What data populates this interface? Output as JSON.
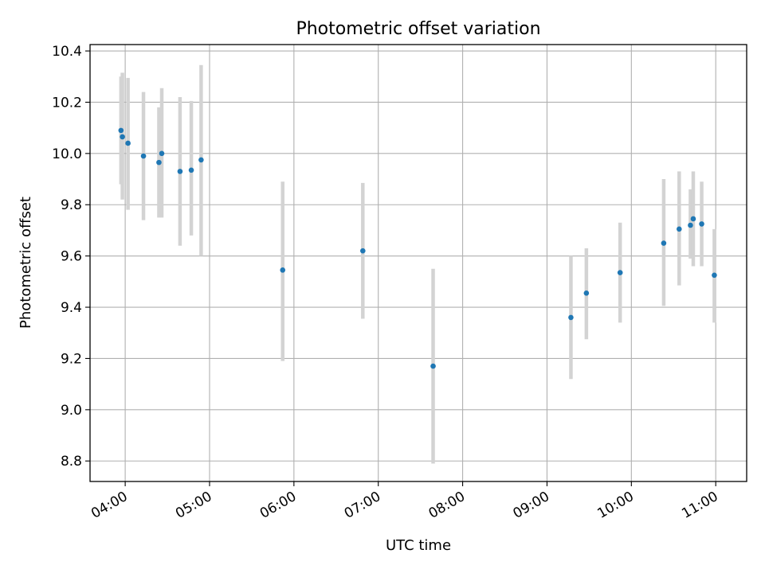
{
  "chart_data": {
    "type": "scatter",
    "title": "Photometric offset variation",
    "xlabel": "UTC time",
    "ylabel": "Photometric offset",
    "xlim": [
      "03:35",
      "11:22"
    ],
    "ylim": [
      8.72,
      10.425
    ],
    "x_ticks": [
      "04:00",
      "05:00",
      "06:00",
      "07:00",
      "08:00",
      "09:00",
      "10:00",
      "11:00"
    ],
    "y_ticks": [
      8.8,
      9.0,
      9.2,
      9.4,
      9.6,
      9.8,
      10.0,
      10.2,
      10.4
    ],
    "y_tick_labels": [
      "8.8",
      "9.0",
      "9.2",
      "9.4",
      "9.6",
      "9.8",
      "10.0",
      "10.2",
      "10.4"
    ],
    "grid": true,
    "marker_color": "#1f77b4",
    "errorbar_color": "#d3d3d3",
    "points": [
      {
        "x": "03:57",
        "y": 10.09,
        "ylow": 9.88,
        "yhigh": 10.3
      },
      {
        "x": "03:58",
        "y": 10.065,
        "ylow": 9.82,
        "yhigh": 10.315
      },
      {
        "x": "04:02",
        "y": 10.04,
        "ylow": 9.78,
        "yhigh": 10.295
      },
      {
        "x": "04:13",
        "y": 9.99,
        "ylow": 9.74,
        "yhigh": 10.24
      },
      {
        "x": "04:24",
        "y": 9.965,
        "ylow": 9.75,
        "yhigh": 10.18
      },
      {
        "x": "04:26",
        "y": 10.0,
        "ylow": 9.75,
        "yhigh": 10.255
      },
      {
        "x": "04:39",
        "y": 9.93,
        "ylow": 9.64,
        "yhigh": 10.22
      },
      {
        "x": "04:47",
        "y": 9.935,
        "ylow": 9.68,
        "yhigh": 10.205
      },
      {
        "x": "04:54",
        "y": 9.975,
        "ylow": 9.6,
        "yhigh": 10.345
      },
      {
        "x": "05:52",
        "y": 9.545,
        "ylow": 9.19,
        "yhigh": 9.89
      },
      {
        "x": "06:49",
        "y": 9.62,
        "ylow": 9.355,
        "yhigh": 9.885
      },
      {
        "x": "07:39",
        "y": 9.17,
        "ylow": 8.79,
        "yhigh": 9.55
      },
      {
        "x": "09:17",
        "y": 9.36,
        "ylow": 9.12,
        "yhigh": 9.6
      },
      {
        "x": "09:28",
        "y": 9.455,
        "ylow": 9.275,
        "yhigh": 9.63
      },
      {
        "x": "09:52",
        "y": 9.535,
        "ylow": 9.34,
        "yhigh": 9.73
      },
      {
        "x": "10:23",
        "y": 9.65,
        "ylow": 9.405,
        "yhigh": 9.9
      },
      {
        "x": "10:34",
        "y": 9.705,
        "ylow": 9.485,
        "yhigh": 9.93
      },
      {
        "x": "10:42",
        "y": 9.72,
        "ylow": 9.59,
        "yhigh": 9.86
      },
      {
        "x": "10:44",
        "y": 9.745,
        "ylow": 9.56,
        "yhigh": 9.93
      },
      {
        "x": "10:50",
        "y": 9.725,
        "ylow": 9.56,
        "yhigh": 9.89
      },
      {
        "x": "10:59",
        "y": 9.525,
        "ylow": 9.34,
        "yhigh": 9.705
      }
    ]
  }
}
